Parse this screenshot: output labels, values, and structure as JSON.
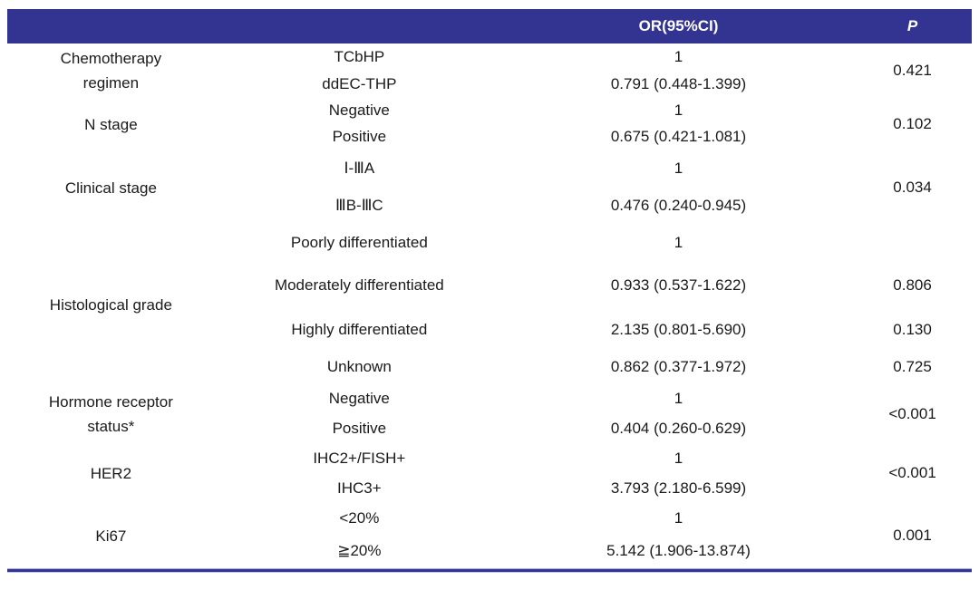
{
  "table": {
    "header": {
      "variable": "",
      "subcategory": "",
      "or": "OR(95%CI)",
      "p": "P"
    },
    "colors": {
      "header_bg": "#333392",
      "header_text": "#ffffff",
      "body_text": "#1a1a1a",
      "bottom_rule": "#333392"
    },
    "groups": [
      {
        "label": "Chemotherapy regimen",
        "p": "0.421",
        "p_span": true,
        "rows": [
          {
            "category": "TCbHP",
            "or": "1"
          },
          {
            "category": "ddEC-THP",
            "or": "0.791 (0.448-1.399)"
          }
        ]
      },
      {
        "label": "N stage",
        "p": "0.102",
        "p_span": true,
        "rows": [
          {
            "category": "Negative",
            "or": "1"
          },
          {
            "category": "Positive",
            "or": "0.675 (0.421-1.081)"
          }
        ]
      },
      {
        "label": "Clinical stage",
        "p": "0.034",
        "p_span": true,
        "rows": [
          {
            "category": "Ⅰ-ⅢA",
            "or": "1"
          },
          {
            "category": "ⅢB-ⅢC",
            "or": "0.476 (0.240-0.945)"
          }
        ]
      },
      {
        "label": "Histological grade",
        "p_span": false,
        "rows": [
          {
            "category": "Poorly differentiated",
            "or": "1",
            "p": ""
          },
          {
            "category": "Moderately differentiated",
            "or": "0.933 (0.537-1.622)",
            "p": "0.806"
          },
          {
            "category": "Highly differentiated",
            "or": "2.135 (0.801-5.690)",
            "p": "0.130"
          },
          {
            "category": "Unknown",
            "or": "0.862 (0.377-1.972)",
            "p": "0.725"
          }
        ]
      },
      {
        "label": "Hormone receptor status*",
        "p": "<0.001",
        "p_span": true,
        "rows": [
          {
            "category": "Negative",
            "or": "1"
          },
          {
            "category": "Positive",
            "or": "0.404 (0.260-0.629)"
          }
        ]
      },
      {
        "label": "HER2",
        "p": "<0.001",
        "p_span": true,
        "rows": [
          {
            "category": "IHC2+/FISH+",
            "or": "1"
          },
          {
            "category": "IHC3+",
            "or": "3.793 (2.180-6.599)"
          }
        ]
      },
      {
        "label": "Ki67",
        "p": "0.001",
        "p_span": true,
        "rows": [
          {
            "category": "<20%",
            "or": "1"
          },
          {
            "category": "≧20%",
            "or": "5.142 (1.906-13.874)"
          }
        ]
      }
    ]
  }
}
